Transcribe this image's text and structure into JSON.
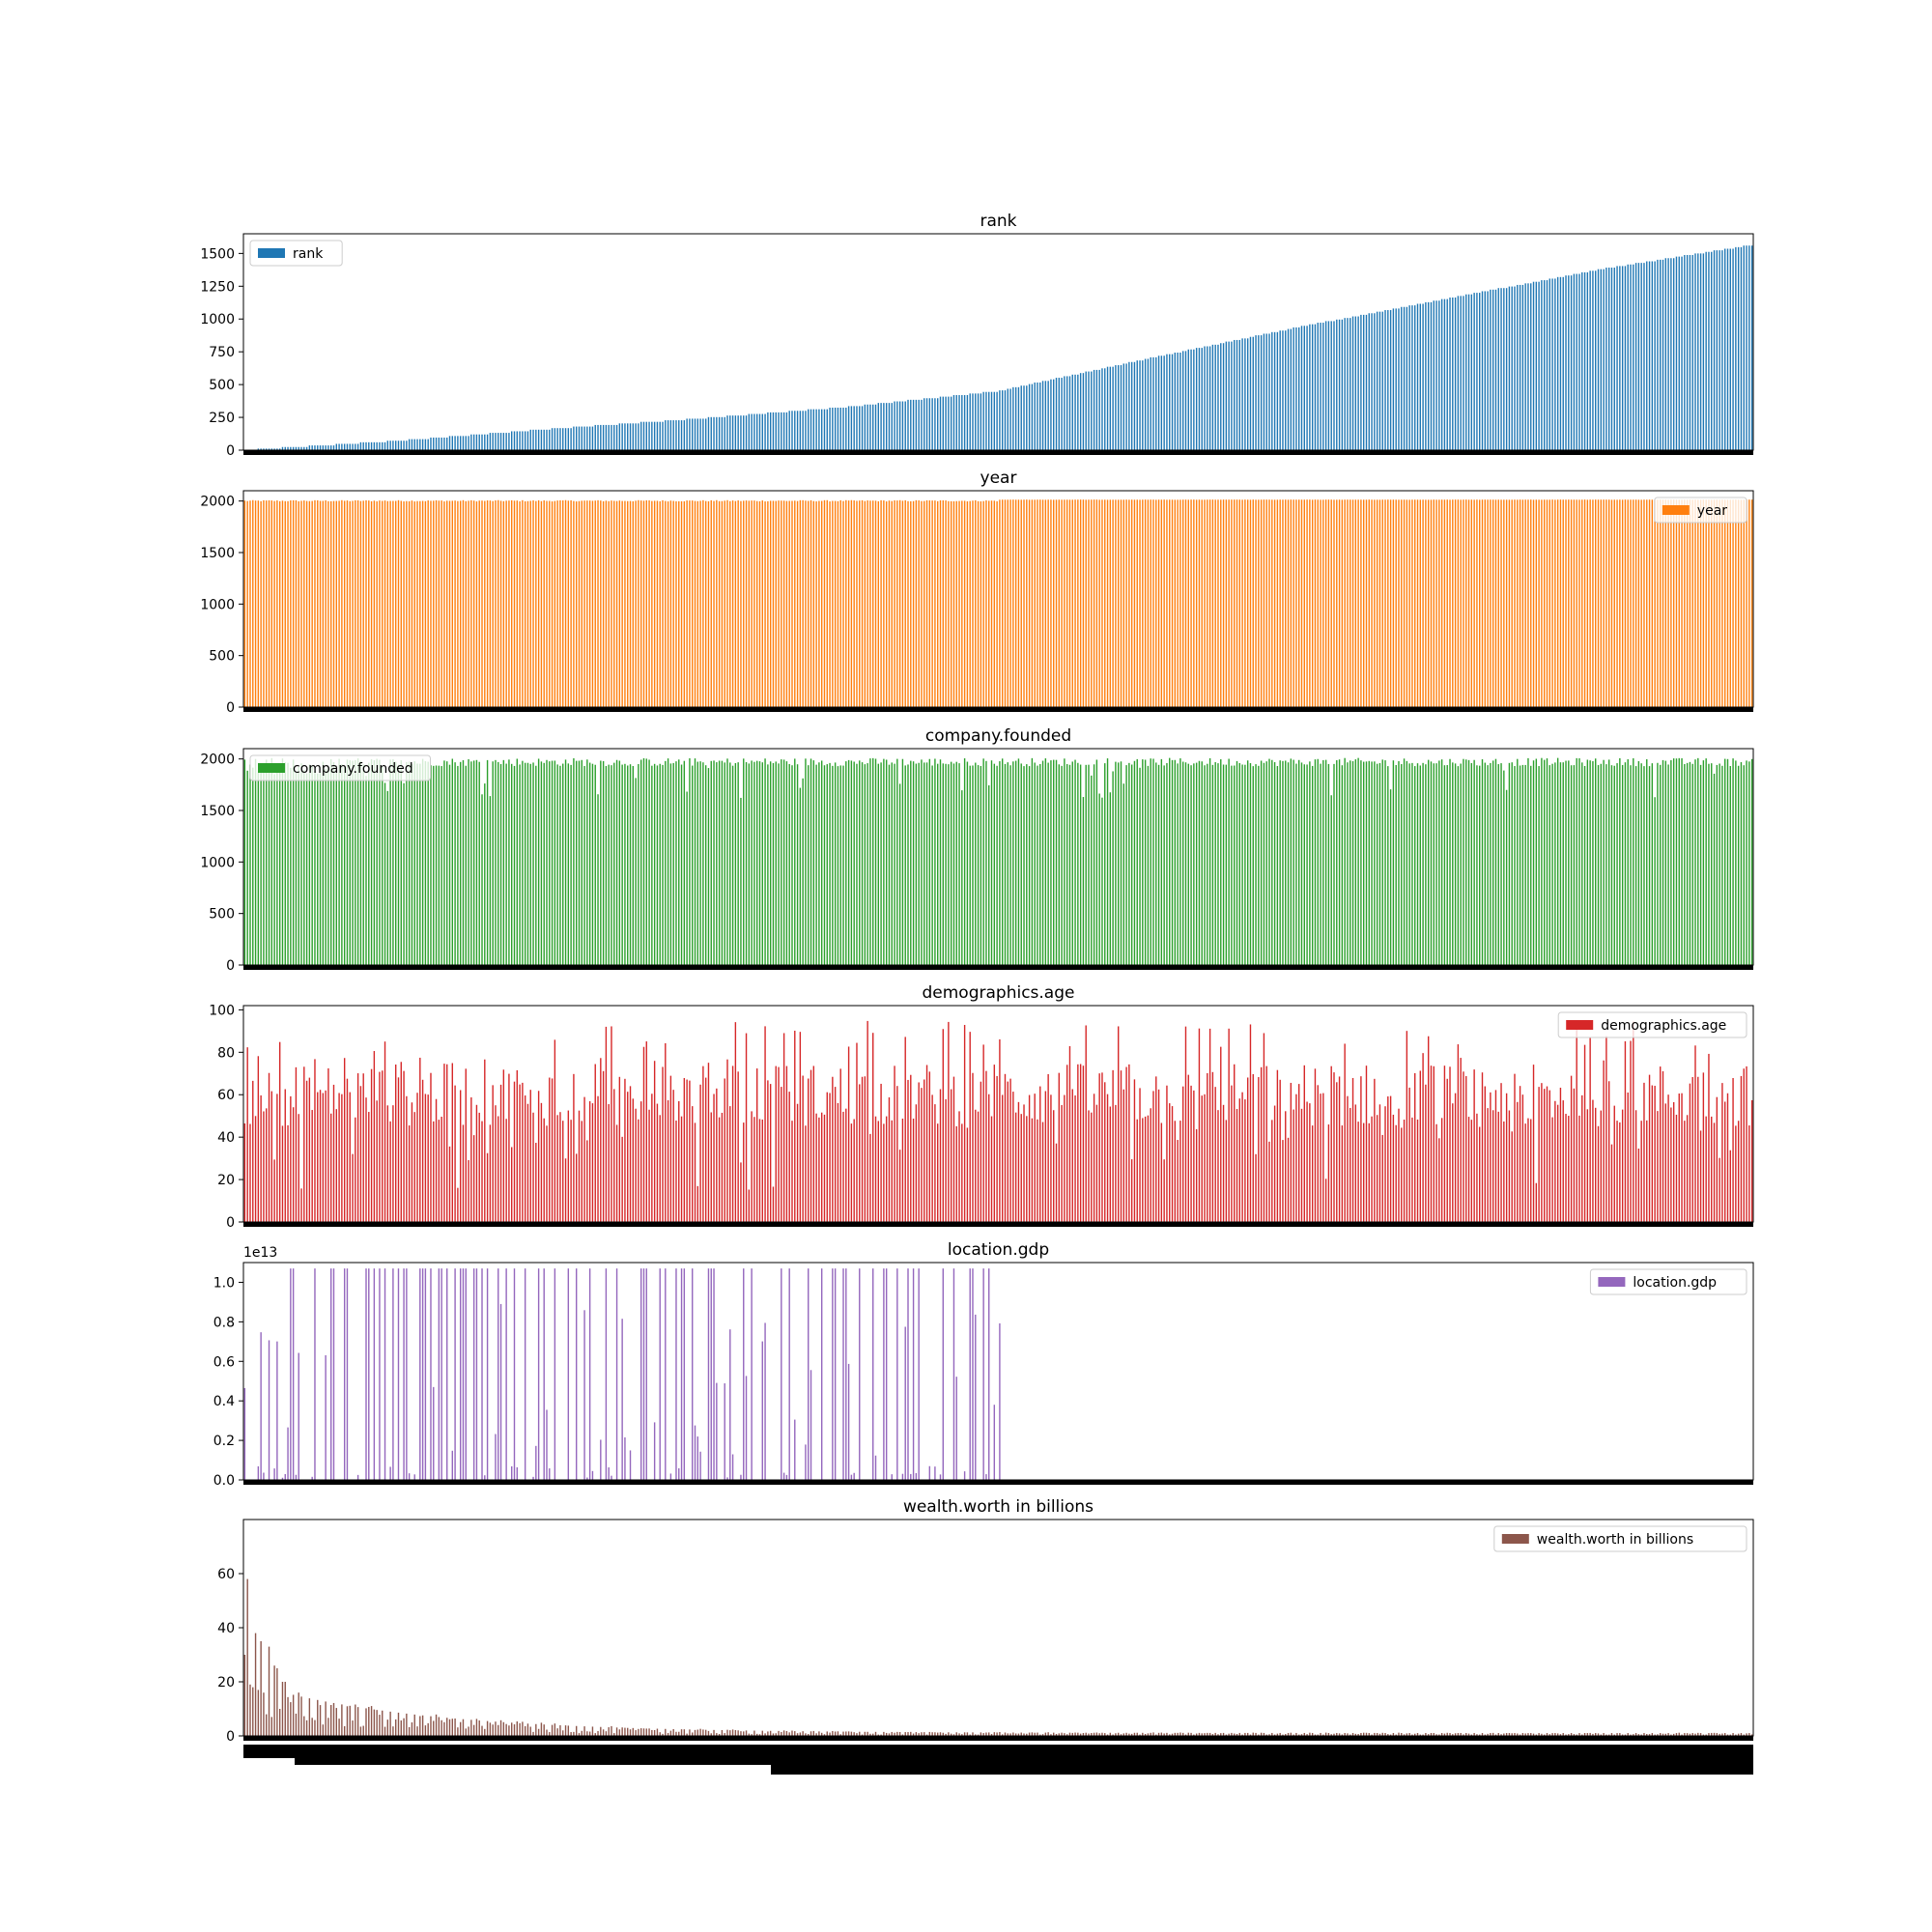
{
  "figure": {
    "background": "#ffffff"
  },
  "chart_data": [
    {
      "type": "bar",
      "title": "rank",
      "legend_label": "rank",
      "legend_position": "upper-left",
      "color": "#1f77b4",
      "n_bars": 560,
      "ylim": [
        0,
        1650
      ],
      "yticks": [
        "0",
        "250",
        "500",
        "750",
        "1000",
        "1250",
        "1500"
      ],
      "ytick_values": [
        0,
        250,
        500,
        750,
        1000,
        1250,
        1500
      ],
      "offset_label": "",
      "values_profile": {
        "description_points_x_fraction": [
          0,
          0.1,
          0.2,
          0.3,
          0.4,
          0.5,
          0.6,
          0.7,
          0.8,
          0.9,
          1.0
        ],
        "values": [
          1,
          70,
          160,
          240,
          330,
          450,
          700,
          940,
          1160,
          1380,
          1565
        ]
      }
    },
    {
      "type": "bar",
      "title": "year",
      "legend_label": "year",
      "legend_position": "upper-right",
      "color": "#ff7f0e",
      "n_bars": 560,
      "ylim": [
        0,
        2100
      ],
      "yticks": [
        "0",
        "500",
        "1000",
        "1500",
        "2000"
      ],
      "ytick_values": [
        0,
        500,
        1000,
        1500,
        2000
      ],
      "offset_label": "",
      "typical_value_range": [
        1996,
        2014
      ]
    },
    {
      "type": "bar",
      "title": "company.founded",
      "legend_label": "company.founded",
      "legend_position": "upper-left",
      "color": "#2ca02c",
      "n_bars": 560,
      "ylim": [
        0,
        2100
      ],
      "yticks": [
        "0",
        "500",
        "1000",
        "1500",
        "2000"
      ],
      "ytick_values": [
        0,
        500,
        1000,
        1500,
        2000
      ],
      "offset_label": "",
      "typical_value_range": [
        1850,
        2012
      ]
    },
    {
      "type": "bar",
      "title": "demographics.age",
      "legend_label": "demographics.age",
      "legend_position": "upper-right",
      "color": "#d62728",
      "n_bars": 560,
      "ylim": [
        0,
        102
      ],
      "yticks": [
        "0",
        "20",
        "40",
        "60",
        "80",
        "100"
      ],
      "ytick_values": [
        0,
        20,
        40,
        60,
        80,
        100
      ],
      "offset_label": "",
      "typical_value_range": [
        12,
        95
      ]
    },
    {
      "type": "bar",
      "title": "location.gdp",
      "legend_label": "location.gdp",
      "legend_position": "upper-right",
      "color": "#9467bd",
      "n_bars": 560,
      "ylim": [
        0,
        1.1
      ],
      "yticks": [
        "0.0",
        "0.2",
        "0.4",
        "0.6",
        "0.8",
        "1.0"
      ],
      "ytick_values": [
        0,
        0.2,
        0.4,
        0.6,
        0.8,
        1.0
      ],
      "offset_label": "1e13",
      "nonzero_fraction_of_bars": 0.503,
      "typical_tall_value": 1.07
    },
    {
      "type": "bar",
      "title": "wealth.worth in billions",
      "legend_label": "wealth.worth in billions",
      "legend_position": "upper-right",
      "color": "#8c564b",
      "n_bars": 560,
      "ylim": [
        0,
        80
      ],
      "yticks": [
        "0",
        "20",
        "40",
        "60"
      ],
      "ytick_values": [
        0,
        20,
        40,
        60
      ],
      "offset_label": "",
      "leading_values": [
        30,
        58,
        19,
        18,
        38,
        17,
        35,
        16,
        8,
        33,
        7,
        26,
        25,
        10,
        20,
        20
      ],
      "tail_value": 1.0
    }
  ]
}
